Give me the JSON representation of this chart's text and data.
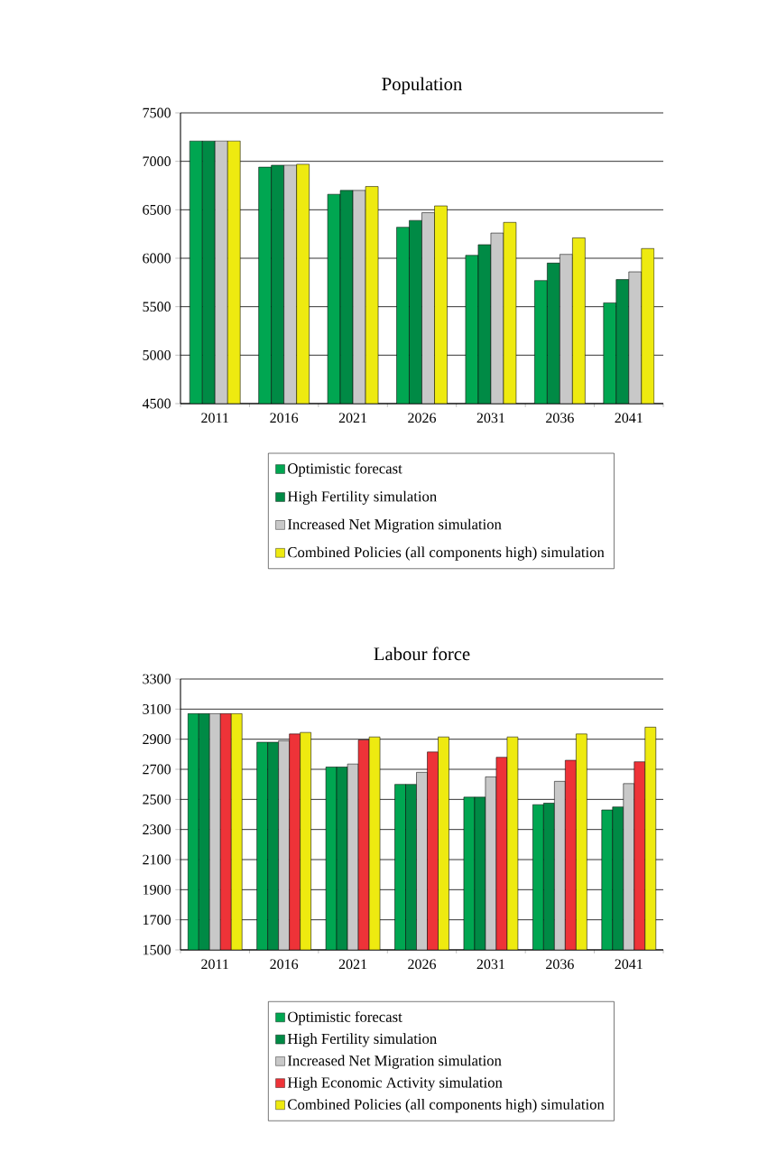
{
  "chart_data": [
    {
      "type": "bar",
      "title": "Population",
      "categories": [
        "2011",
        "2016",
        "2021",
        "2026",
        "2031",
        "2036",
        "2041"
      ],
      "series": [
        {
          "name": "Optimistic forecast",
          "color": "#00a651",
          "values": [
            7210,
            6940,
            6660,
            6320,
            6030,
            5770,
            5540
          ]
        },
        {
          "name": "High Fertility simulation",
          "color": "#008a45",
          "values": [
            7210,
            6960,
            6700,
            6390,
            6140,
            5950,
            5780
          ]
        },
        {
          "name": "Increased Net Migration simulation",
          "color": "#c8c8c8",
          "values": [
            7210,
            6960,
            6700,
            6470,
            6260,
            6040,
            5860
          ]
        },
        {
          "name": "Combined Policies (all components high) simulation",
          "color": "#eeea10",
          "values": [
            7210,
            6970,
            6740,
            6540,
            6370,
            6210,
            6100
          ]
        }
      ],
      "ylim": [
        4500,
        7500
      ],
      "yticks": [
        4500,
        5000,
        5500,
        6000,
        6500,
        7000,
        7500
      ],
      "grid": "y",
      "legend": "bottom"
    },
    {
      "type": "bar",
      "title": "Labour force",
      "categories": [
        "2011",
        "2016",
        "2021",
        "2026",
        "2031",
        "2036",
        "2041"
      ],
      "series": [
        {
          "name": "Optimistic forecast",
          "color": "#00a651",
          "values": [
            3070,
            2880,
            2715,
            2600,
            2515,
            2465,
            2430
          ]
        },
        {
          "name": "High Fertility simulation",
          "color": "#008a45",
          "values": [
            3070,
            2880,
            2715,
            2600,
            2515,
            2475,
            2450
          ]
        },
        {
          "name": "Increased Net Migration simulation",
          "color": "#c8c8c8",
          "values": [
            3070,
            2890,
            2735,
            2680,
            2650,
            2620,
            2605
          ]
        },
        {
          "name": "High Economic Activity simulation",
          "color": "#ee3338",
          "values": [
            3070,
            2935,
            2895,
            2815,
            2780,
            2760,
            2750
          ]
        },
        {
          "name": "Combined Policies (all components high) simulation",
          "color": "#eeea10",
          "values": [
            3070,
            2945,
            2915,
            2915,
            2915,
            2935,
            2980
          ]
        }
      ],
      "ylim": [
        1500,
        3300
      ],
      "yticks": [
        1500,
        1700,
        1900,
        2100,
        2300,
        2500,
        2700,
        2900,
        3100,
        3300
      ],
      "grid": "y",
      "legend": "bottom"
    }
  ]
}
